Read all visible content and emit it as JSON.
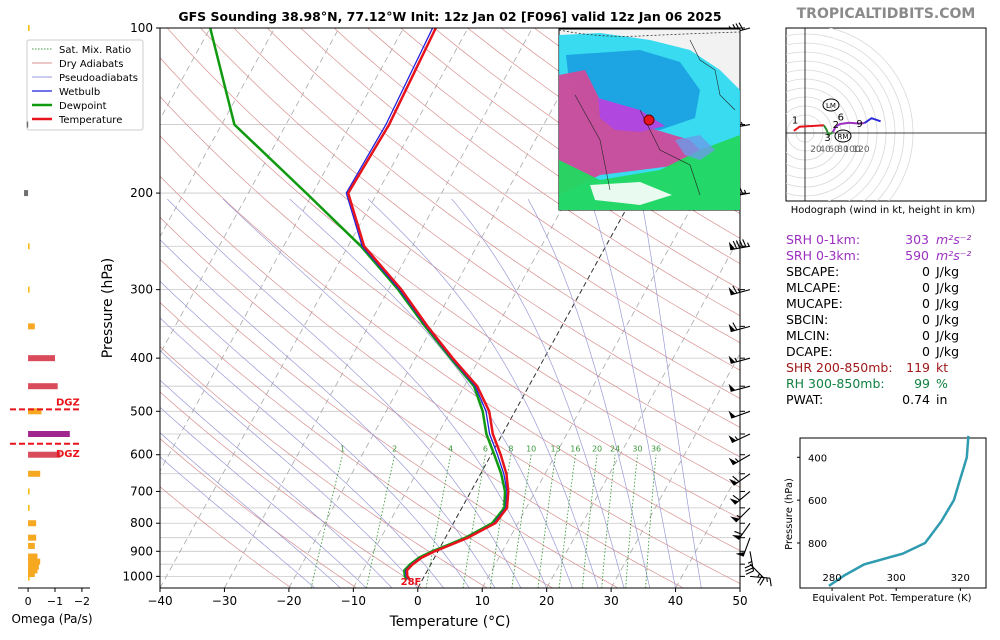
{
  "title": "GFS Sounding 38.98°N, 77.12°W Init: 12z Jan 02 [F096] valid 12z Jan 06 2025",
  "watermark": "TROPICALTIDBITS.COM",
  "colors": {
    "temperature": "#e8141b",
    "dewpoint": "#109a10",
    "wetbulb": "#2222dd",
    "dry_adiabat": "#d89090",
    "pseudoadiabat": "#9a9ad8",
    "mixing_ratio": "#3c9a3c",
    "isobar": "#c8c8c8",
    "isotherm": "#a8a8a8",
    "hodo_1": "#e8141b",
    "hodo_2": "#2e8b2e",
    "hodo_3": "#9b30c0",
    "hodo_4": "#2a2ad8",
    "theta_e": "#2f9bb0",
    "srh": "#9b30c0",
    "shr": "#a01818",
    "rh": "#108040"
  },
  "skewt": {
    "type": "line",
    "xlabel": "Temperature (°C)",
    "ylabel": "Pressure (hPa)",
    "xlim": [
      -40,
      50
    ],
    "ylim": [
      1050,
      100
    ],
    "x_ticks": [
      -40,
      -30,
      -20,
      -10,
      0,
      10,
      20,
      30,
      40,
      50
    ],
    "y_ticks": [
      100,
      200,
      300,
      400,
      500,
      600,
      700,
      800,
      900,
      1000
    ],
    "legend": [
      "Sat. Mix. Ratio",
      "Dry Adiabats",
      "Pseudoadiabats",
      "Wetbulb",
      "Dewpoint",
      "Temperature"
    ],
    "mixing_ratio_labels": [
      "1",
      "2",
      "4",
      "6",
      "8",
      "10",
      "13",
      "16",
      "20",
      "24",
      "30",
      "36"
    ],
    "surface_label": "28F",
    "series": [
      {
        "name": "Temperature",
        "points": [
          [
            1013,
            -2.0
          ],
          [
            1000,
            -2.6
          ],
          [
            975,
            -3.2
          ],
          [
            950,
            -2.8
          ],
          [
            925,
            -2.0
          ],
          [
            900,
            -0.5
          ],
          [
            875,
            1.5
          ],
          [
            850,
            3.5
          ],
          [
            800,
            6.5
          ],
          [
            750,
            7.0
          ],
          [
            700,
            5.8
          ],
          [
            650,
            4.0
          ],
          [
            600,
            1.5
          ],
          [
            550,
            -1.5
          ],
          [
            500,
            -4.0
          ],
          [
            450,
            -8.0
          ],
          [
            400,
            -14.2
          ],
          [
            350,
            -20.8
          ],
          [
            300,
            -28.0
          ],
          [
            250,
            -37.5
          ],
          [
            200,
            -44.5
          ],
          [
            150,
            -44.0
          ],
          [
            100,
            -45.0
          ]
        ]
      },
      {
        "name": "Wetbulb",
        "points": [
          [
            1013,
            -2.2
          ],
          [
            1000,
            -2.8
          ],
          [
            975,
            -3.4
          ],
          [
            950,
            -3.0
          ],
          [
            925,
            -2.2
          ],
          [
            900,
            -0.7
          ],
          [
            875,
            1.3
          ],
          [
            850,
            3.3
          ],
          [
            800,
            6.3
          ],
          [
            750,
            6.8
          ],
          [
            700,
            5.6
          ],
          [
            650,
            3.6
          ],
          [
            600,
            1.0
          ],
          [
            550,
            -2.0
          ],
          [
            500,
            -4.5
          ],
          [
            450,
            -8.3
          ],
          [
            400,
            -14.4
          ],
          [
            350,
            -21.0
          ],
          [
            300,
            -28.3
          ],
          [
            250,
            -37.8
          ],
          [
            200,
            -44.8
          ],
          [
            150,
            -44.5
          ],
          [
            100,
            -45.5
          ]
        ]
      },
      {
        "name": "Dewpoint",
        "points": [
          [
            1013,
            -2.4
          ],
          [
            1000,
            -3.0
          ],
          [
            975,
            -3.6
          ],
          [
            950,
            -3.2
          ],
          [
            925,
            -2.4
          ],
          [
            900,
            -0.9
          ],
          [
            875,
            1.1
          ],
          [
            850,
            3.1
          ],
          [
            800,
            6.0
          ],
          [
            750,
            6.6
          ],
          [
            700,
            5.3
          ],
          [
            650,
            3.2
          ],
          [
            600,
            0.5
          ],
          [
            550,
            -2.5
          ],
          [
            500,
            -5.0
          ],
          [
            450,
            -8.5
          ],
          [
            400,
            -14.5
          ],
          [
            350,
            -21.2
          ],
          [
            300,
            -28.5
          ],
          [
            250,
            -38.0
          ],
          [
            200,
            -51.0
          ],
          [
            150,
            -68.0
          ],
          [
            100,
            -80.0
          ]
        ]
      }
    ]
  },
  "omega": {
    "type": "bar",
    "xlabel": "Omega (Pa/s)",
    "xlim": [
      0.3,
      -2.3
    ],
    "x_ticks": [
      "0",
      "−1",
      "−2"
    ],
    "dgz_label": "DGZ",
    "dgz_pressures": [
      496,
      573
    ],
    "values": [
      {
        "p": 1005,
        "omega": -0.05
      },
      {
        "p": 990,
        "omega": -0.25
      },
      {
        "p": 975,
        "omega": -0.35
      },
      {
        "p": 960,
        "omega": -0.4
      },
      {
        "p": 940,
        "omega": -0.45
      },
      {
        "p": 920,
        "omega": -0.35
      },
      {
        "p": 880,
        "omega": -0.25
      },
      {
        "p": 850,
        "omega": -0.3
      },
      {
        "p": 800,
        "omega": -0.3
      },
      {
        "p": 750,
        "omega": -0.05
      },
      {
        "p": 700,
        "omega": -0.05
      },
      {
        "p": 650,
        "omega": -0.45
      },
      {
        "p": 600,
        "omega": -1.2
      },
      {
        "p": 550,
        "omega": -1.55
      },
      {
        "p": 500,
        "omega": -0.5
      },
      {
        "p": 450,
        "omega": -1.1
      },
      {
        "p": 400,
        "omega": -1.0
      },
      {
        "p": 350,
        "omega": -0.25
      },
      {
        "p": 300,
        "omega": -0.05
      },
      {
        "p": 250,
        "omega": -0.05
      },
      {
        "p": 200,
        "omega": 0.15
      },
      {
        "p": 150,
        "omega": 0.05
      },
      {
        "p": 100,
        "omega": -0.05
      }
    ]
  },
  "hodograph": {
    "type": "line",
    "caption": "Hodograph (wind in kt, height in km)",
    "x_ticks": [
      "20",
      "40",
      "60",
      "80",
      "100",
      "120"
    ],
    "height_labels": [
      "1",
      "2",
      "3",
      "6",
      "9"
    ],
    "motion_labels": [
      "LM",
      "RM"
    ],
    "points": [
      [
        -25,
        5
      ],
      [
        -12,
        14
      ],
      [
        5,
        15
      ],
      [
        25,
        16
      ],
      [
        42,
        17
      ],
      [
        48,
        7
      ],
      [
        52,
        -4
      ],
      [
        62,
        2
      ],
      [
        68,
        14
      ],
      [
        78,
        20
      ],
      [
        98,
        23
      ],
      [
        118,
        21
      ],
      [
        132,
        22
      ],
      [
        148,
        33
      ],
      [
        168,
        26
      ]
    ]
  },
  "indices": [
    {
      "label": "SRH 0-1km:",
      "value": "303",
      "unit": "m²s⁻²",
      "style": "srh"
    },
    {
      "label": "SRH 0-3km:",
      "value": "590",
      "unit": "m²s⁻²",
      "style": "srh"
    },
    {
      "label": "SBCAPE:",
      "value": "0",
      "unit": "J/kg",
      "style": "plain"
    },
    {
      "label": "MLCAPE:",
      "value": "0",
      "unit": "J/kg",
      "style": "plain"
    },
    {
      "label": "MUCAPE:",
      "value": "0",
      "unit": "J/kg",
      "style": "plain"
    },
    {
      "label": "SBCIN:",
      "value": "0",
      "unit": "J/kg",
      "style": "plain"
    },
    {
      "label": "MLCIN:",
      "value": "0",
      "unit": "J/kg",
      "style": "plain"
    },
    {
      "label": "DCAPE:",
      "value": "0",
      "unit": "J/kg",
      "style": "plain"
    },
    {
      "label": "SHR 200-850mb:",
      "value": "119",
      "unit": "kt",
      "style": "shr"
    },
    {
      "label": "RH 300-850mb:",
      "value": "99",
      "unit": "%",
      "style": "rh"
    },
    {
      "label": "PWAT:",
      "value": "0.74",
      "unit": "in",
      "style": "plain"
    }
  ],
  "theta_e": {
    "type": "line",
    "xlabel": "Equivalent Pot. Temperature (K)",
    "ylabel": "Pressure (hPa)",
    "x_ticks": [
      280,
      300,
      320
    ],
    "y_ticks": [
      400,
      600,
      800
    ],
    "points": [
      [
        1000,
        279
      ],
      [
        950,
        284
      ],
      [
        900,
        290
      ],
      [
        850,
        302
      ],
      [
        800,
        309
      ],
      [
        700,
        314
      ],
      [
        600,
        318
      ],
      [
        500,
        320
      ],
      [
        450,
        321
      ],
      [
        400,
        322
      ],
      [
        300,
        322.5
      ]
    ]
  },
  "wind_barbs": [
    {
      "p": 100,
      "dir": 255,
      "spd": 80
    },
    {
      "p": 150,
      "dir": 260,
      "spd": 105
    },
    {
      "p": 200,
      "dir": 260,
      "spd": 115
    },
    {
      "p": 250,
      "dir": 260,
      "spd": 95
    },
    {
      "p": 300,
      "dir": 255,
      "spd": 65
    },
    {
      "p": 350,
      "dir": 255,
      "spd": 60
    },
    {
      "p": 400,
      "dir": 255,
      "spd": 55
    },
    {
      "p": 450,
      "dir": 255,
      "spd": 50
    },
    {
      "p": 500,
      "dir": 250,
      "spd": 50
    },
    {
      "p": 550,
      "dir": 245,
      "spd": 55
    },
    {
      "p": 600,
      "dir": 240,
      "spd": 55
    },
    {
      "p": 650,
      "dir": 235,
      "spd": 60
    },
    {
      "p": 700,
      "dir": 230,
      "spd": 60
    },
    {
      "p": 750,
      "dir": 225,
      "spd": 55
    },
    {
      "p": 800,
      "dir": 215,
      "spd": 60
    },
    {
      "p": 850,
      "dir": 200,
      "spd": 50
    },
    {
      "p": 900,
      "dir": 170,
      "spd": 35
    },
    {
      "p": 950,
      "dir": 135,
      "spd": 25
    },
    {
      "p": 1000,
      "dir": 95,
      "spd": 15
    }
  ]
}
